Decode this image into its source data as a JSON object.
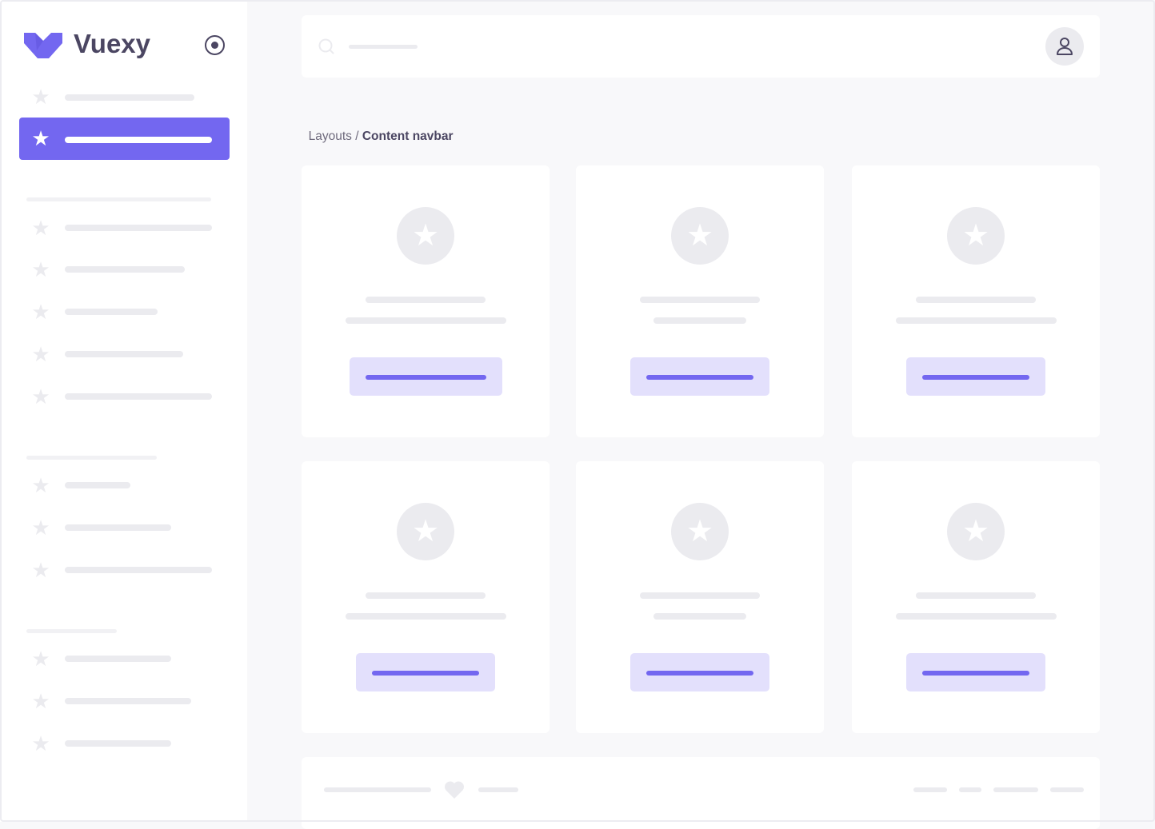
{
  "brand": {
    "name": "Vuexy",
    "color": "#7367f0"
  },
  "breadcrumb": {
    "parent": "Layouts",
    "separator": " / ",
    "current": "Content navbar"
  },
  "icons": {
    "menu_item": "star-icon",
    "toggle": "radio-target-icon",
    "search": "search-icon",
    "user": "user-icon",
    "footer": "heart-icon"
  },
  "colors": {
    "accent": "#7367f0",
    "accent_light": "#e3e0fc",
    "placeholder": "#ebebef",
    "background": "#f8f8fa"
  }
}
